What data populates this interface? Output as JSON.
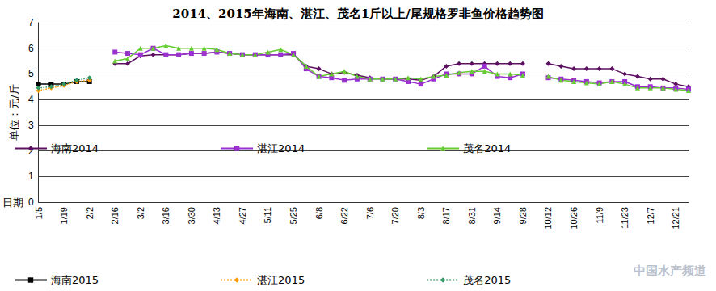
{
  "chart_data": {
    "type": "line",
    "title": "2014、2015年海南、湛江、茂名1斤以上/尾规格罗非鱼价格趋势图",
    "x_label": "日期",
    "y_label": "单位：元/斤",
    "annotations": [
      "中国水产频道"
    ],
    "categories": [
      "1/5",
      null,
      "1/19",
      null,
      "2/2",
      null,
      "2/16",
      null,
      "3/2",
      null,
      "3/16",
      null,
      "3/30",
      null,
      "4/13",
      null,
      "4/27",
      null,
      "5/11",
      null,
      "5/25",
      null,
      "6/8",
      null,
      "6/22",
      null,
      "7/6",
      null,
      "7/20",
      null,
      "8/3",
      null,
      "8/17",
      null,
      "8/31",
      null,
      "9/14",
      null,
      "9/28",
      null,
      "10/12",
      null,
      "10/26",
      null,
      "11/9",
      null,
      "11/23",
      null,
      "12/7",
      null,
      "12/21",
      null
    ],
    "series": [
      {
        "name": "海南2014",
        "color": "#5c1060",
        "marker": "diamond",
        "line_style": "solid",
        "values": [
          null,
          null,
          null,
          null,
          null,
          null,
          5.4,
          5.4,
          5.7,
          5.75,
          5.75,
          5.75,
          5.8,
          5.8,
          5.85,
          5.8,
          5.75,
          5.75,
          5.75,
          5.75,
          5.75,
          5.3,
          5.2,
          5.0,
          5.05,
          4.95,
          4.85,
          4.8,
          4.8,
          4.8,
          4.75,
          4.9,
          5.3,
          5.4,
          5.4,
          5.4,
          5.4,
          5.4,
          5.4,
          null,
          5.4,
          5.3,
          5.2,
          5.2,
          5.2,
          5.2,
          5.0,
          4.9,
          4.8,
          4.8,
          4.6,
          4.5
        ]
      },
      {
        "name": "湛江2014",
        "color": "#9b30d0",
        "marker": "square",
        "line_style": "solid",
        "values": [
          null,
          null,
          null,
          null,
          null,
          null,
          5.85,
          5.8,
          5.75,
          6.0,
          5.75,
          5.75,
          5.8,
          5.8,
          5.85,
          5.8,
          5.75,
          5.75,
          5.75,
          5.75,
          5.8,
          5.2,
          4.9,
          4.85,
          4.75,
          4.8,
          4.8,
          4.8,
          4.8,
          4.7,
          4.6,
          4.8,
          5.0,
          5.0,
          5.0,
          5.3,
          4.9,
          4.85,
          5.0,
          null,
          4.85,
          4.8,
          4.75,
          4.7,
          4.65,
          4.7,
          4.7,
          4.5,
          4.5,
          4.45,
          4.45,
          4.4
        ]
      },
      {
        "name": "茂名2014",
        "color": "#66cc33",
        "marker": "triangle",
        "line_style": "solid",
        "values": [
          null,
          null,
          null,
          null,
          null,
          null,
          5.5,
          5.6,
          6.0,
          6.0,
          6.1,
          6.0,
          6.0,
          6.0,
          5.95,
          5.8,
          5.75,
          5.75,
          5.85,
          5.95,
          5.75,
          5.3,
          4.9,
          5.0,
          5.1,
          4.9,
          4.8,
          4.8,
          4.8,
          4.85,
          4.8,
          4.9,
          4.95,
          5.05,
          5.1,
          5.1,
          5.0,
          5.0,
          4.95,
          null,
          4.9,
          4.75,
          4.7,
          4.65,
          4.6,
          4.7,
          4.6,
          4.45,
          4.45,
          4.45,
          4.4,
          4.35
        ]
      },
      {
        "name": "海南2015",
        "color": "#000000",
        "marker": "square",
        "line_style": "solid",
        "values": [
          4.6,
          4.6,
          4.6,
          4.7,
          4.7,
          null,
          null,
          null,
          null,
          null,
          null,
          null,
          null,
          null,
          null,
          null,
          null,
          null,
          null,
          null,
          null,
          null,
          null,
          null,
          null,
          null,
          null,
          null,
          null,
          null,
          null,
          null,
          null,
          null,
          null,
          null,
          null,
          null,
          null,
          null,
          null,
          null,
          null,
          null,
          null,
          null,
          null,
          null,
          null,
          null,
          null,
          null
        ]
      },
      {
        "name": "湛江2015",
        "color": "#ff9900",
        "marker": "diamond",
        "line_style": "dotted",
        "values": [
          4.35,
          4.45,
          4.55,
          4.7,
          4.75,
          null,
          null,
          null,
          null,
          null,
          null,
          null,
          null,
          null,
          null,
          null,
          null,
          null,
          null,
          null,
          null,
          null,
          null,
          null,
          null,
          null,
          null,
          null,
          null,
          null,
          null,
          null,
          null,
          null,
          null,
          null,
          null,
          null,
          null,
          null,
          null,
          null,
          null,
          null,
          null,
          null,
          null,
          null,
          null,
          null,
          null,
          null
        ]
      },
      {
        "name": "茂名2015",
        "color": "#339966",
        "marker": "diamond",
        "line_style": "dotted",
        "values": [
          4.45,
          4.5,
          4.6,
          4.75,
          4.85,
          null,
          null,
          null,
          null,
          null,
          null,
          null,
          null,
          null,
          null,
          null,
          null,
          null,
          null,
          null,
          null,
          null,
          null,
          null,
          null,
          null,
          null,
          null,
          null,
          null,
          null,
          null,
          null,
          null,
          null,
          null,
          null,
          null,
          null,
          null,
          null,
          null,
          null,
          null,
          null,
          null,
          null,
          null,
          null,
          null,
          null,
          null
        ]
      }
    ],
    "ylim": [
      0,
      7
    ],
    "yticks": [
      0,
      1,
      2,
      3,
      4,
      5,
      6,
      7
    ],
    "grid": true,
    "legend": "bottom-left"
  }
}
